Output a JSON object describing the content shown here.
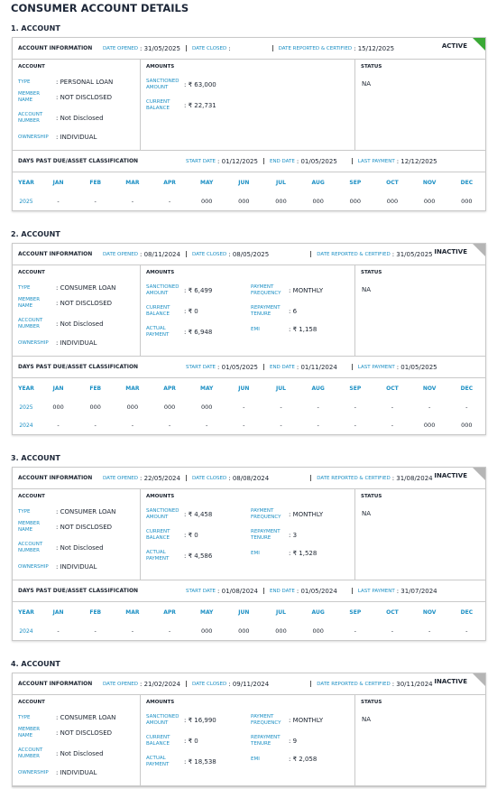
{
  "title": "CONSUMER ACCOUNT DETAILS",
  "labels": {
    "account_information": "ACCOUNT INFORMATION",
    "date_opened": "DATE OPENED",
    "date_closed": "DATE CLOSED",
    "date_reported": "DATE REPORTED & CERTIFIED",
    "account": "ACCOUNT",
    "amounts": "AMOUNTS",
    "status": "STATUS",
    "dpd": "DAYS PAST DUE/ASSET CLASSIFICATION",
    "start_date": "START DATE",
    "end_date": "END DATE",
    "last_payment": "LAST PAYMENT",
    "months": [
      "YEAR",
      "JAN",
      "FEB",
      "MAR",
      "APR",
      "MAY",
      "JUN",
      "JUL",
      "AUG",
      "SEP",
      "OCT",
      "NOV",
      "DEC"
    ]
  },
  "accounts": [
    {
      "heading": "1. ACCOUNT",
      "badge": "ACTIVE",
      "badge_color": "#3aa935",
      "date_opened": ": 31/05/2025",
      "date_closed": ":",
      "date_reported": ": 15/12/2025",
      "fields": [
        {
          "label": "TYPE",
          "value": ": PERSONAL LOAN"
        },
        {
          "label": "MEMBER NAME",
          "value": ": NOT DISCLOSED"
        },
        {
          "label": "ACCOUNT NUMBER",
          "value": ": Not Disclosed"
        },
        {
          "label": "OWNERSHIP",
          "value": ": INDIVIDUAL"
        }
      ],
      "amounts_left": [
        {
          "label": "SANCTIONED AMOUNT",
          "value": ": ₹ 63,000"
        },
        {
          "label": "CURRENT BALANCE",
          "value": ": ₹ 22,731"
        }
      ],
      "amounts_right": [],
      "status": "NA",
      "start_date": ": 01/12/2025",
      "end_date": ": 01/05/2025",
      "last_payment": ": 12/12/2025",
      "rows": [
        [
          "2025",
          "-",
          "-",
          "-",
          "-",
          "000",
          "000",
          "000",
          "000",
          "000",
          "000",
          "000",
          "000"
        ]
      ]
    },
    {
      "heading": "2. ACCOUNT",
      "badge": "INACTIVE",
      "badge_color": "#b5b5b5",
      "date_opened": ": 08/11/2024",
      "date_closed": ": 08/05/2025",
      "date_reported": ": 31/05/2025",
      "fields": [
        {
          "label": "TYPE",
          "value": ": CONSUMER LOAN"
        },
        {
          "label": "MEMBER NAME",
          "value": ": NOT DISCLOSED"
        },
        {
          "label": "ACCOUNT NUMBER",
          "value": ": Not Disclosed"
        },
        {
          "label": "OWNERSHIP",
          "value": ": INDIVIDUAL"
        }
      ],
      "amounts_left": [
        {
          "label": "SANCTIONED AMOUNT",
          "value": ": ₹ 6,499"
        },
        {
          "label": "CURRENT BALANCE",
          "value": ": ₹ 0"
        },
        {
          "label": "ACTUAL PAYMENT",
          "value": ": ₹ 6,948"
        }
      ],
      "amounts_right": [
        {
          "label": "PAYMENT FREQUENCY",
          "value": ": MONTHLY"
        },
        {
          "label": "REPAYMENT TENURE",
          "value": ": 6"
        },
        {
          "label": "EMI",
          "value": ": ₹ 1,158"
        }
      ],
      "status": "NA",
      "start_date": ": 01/05/2025",
      "end_date": ": 01/11/2024",
      "last_payment": ": 01/05/2025",
      "rows": [
        [
          "2025",
          "000",
          "000",
          "000",
          "000",
          "000",
          "-",
          "-",
          "-",
          "-",
          "-",
          "-",
          "-"
        ],
        [
          "2024",
          "-",
          "-",
          "-",
          "-",
          "-",
          "-",
          "-",
          "-",
          "-",
          "-",
          "000",
          "000"
        ]
      ]
    },
    {
      "heading": "3. ACCOUNT",
      "badge": "INACTIVE",
      "badge_color": "#b5b5b5",
      "date_opened": ": 22/05/2024",
      "date_closed": ": 08/08/2024",
      "date_reported": ": 31/08/2024",
      "fields": [
        {
          "label": "TYPE",
          "value": ": CONSUMER LOAN"
        },
        {
          "label": "MEMBER NAME",
          "value": ": NOT DISCLOSED"
        },
        {
          "label": "ACCOUNT NUMBER",
          "value": ": Not Disclosed"
        },
        {
          "label": "OWNERSHIP",
          "value": ": INDIVIDUAL"
        }
      ],
      "amounts_left": [
        {
          "label": "SANCTIONED AMOUNT",
          "value": ": ₹ 4,458"
        },
        {
          "label": "CURRENT BALANCE",
          "value": ": ₹ 0"
        },
        {
          "label": "ACTUAL PAYMENT",
          "value": ": ₹ 4,586"
        }
      ],
      "amounts_right": [
        {
          "label": "PAYMENT FREQUENCY",
          "value": ": MONTHLY"
        },
        {
          "label": "REPAYMENT TENURE",
          "value": ": 3"
        },
        {
          "label": "EMI",
          "value": ": ₹ 1,528"
        }
      ],
      "status": "NA",
      "start_date": ": 01/08/2024",
      "end_date": ": 01/05/2024",
      "last_payment": ": 31/07/2024",
      "rows": [
        [
          "2024",
          "-",
          "-",
          "-",
          "-",
          "000",
          "000",
          "000",
          "000",
          "-",
          "-",
          "-",
          "-"
        ]
      ]
    },
    {
      "heading": "4. ACCOUNT",
      "badge": "INACTIVE",
      "badge_color": "#b5b5b5",
      "date_opened": ": 21/02/2024",
      "date_closed": ": 09/11/2024",
      "date_reported": ": 30/11/2024",
      "fields": [
        {
          "label": "TYPE",
          "value": ": CONSUMER LOAN"
        },
        {
          "label": "MEMBER NAME",
          "value": ": NOT DISCLOSED"
        },
        {
          "label": "ACCOUNT NUMBER",
          "value": ": Not Disclosed"
        },
        {
          "label": "OWNERSHIP",
          "value": ": INDIVIDUAL"
        }
      ],
      "amounts_left": [
        {
          "label": "SANCTIONED AMOUNT",
          "value": ": ₹ 16,990"
        },
        {
          "label": "CURRENT BALANCE",
          "value": ": ₹ 0"
        },
        {
          "label": "ACTUAL PAYMENT",
          "value": ": ₹ 18,538"
        }
      ],
      "amounts_right": [
        {
          "label": "PAYMENT FREQUENCY",
          "value": ": MONTHLY"
        },
        {
          "label": "REPAYMENT TENURE",
          "value": ": 9"
        },
        {
          "label": "EMI",
          "value": ": ₹ 2,058"
        }
      ],
      "status": "NA"
    }
  ]
}
